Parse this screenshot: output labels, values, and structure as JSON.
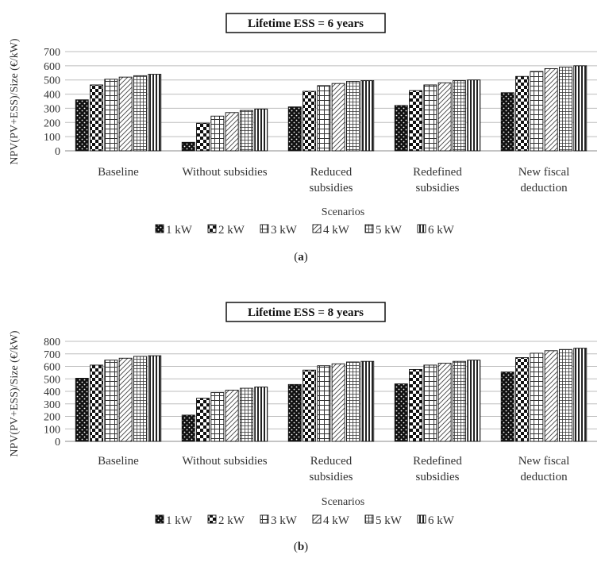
{
  "chart_data": [
    {
      "type": "bar",
      "title": "Lifetime ESS = 6 years",
      "panel_label": "a",
      "xlabel": "Scenarios",
      "ylabel": "NPV(PV+ESS)/Size (€/kW)",
      "ylim": [
        0,
        700
      ],
      "yticks": [
        0,
        100,
        200,
        300,
        400,
        500,
        600,
        700
      ],
      "grid": true,
      "legend_position": "bottom",
      "categories": [
        [
          "Baseline"
        ],
        [
          "Without subsidies"
        ],
        [
          "Reduced",
          "subsidies"
        ],
        [
          "Redefined",
          "subsidies"
        ],
        [
          "New fiscal",
          "deduction"
        ]
      ],
      "series": [
        {
          "name": "1 kW",
          "values": [
            360,
            60,
            310,
            320,
            410
          ]
        },
        {
          "name": "2 kW",
          "values": [
            465,
            195,
            420,
            425,
            525
          ]
        },
        {
          "name": "3 kW",
          "values": [
            505,
            245,
            460,
            465,
            560
          ]
        },
        {
          "name": "4 kW",
          "values": [
            520,
            270,
            475,
            480,
            580
          ]
        },
        {
          "name": "5 kW",
          "values": [
            530,
            285,
            490,
            495,
            590
          ]
        },
        {
          "name": "6 kW",
          "values": [
            540,
            295,
            495,
            500,
            600
          ]
        }
      ]
    },
    {
      "type": "bar",
      "title": "Lifetime ESS = 8 years",
      "panel_label": "b",
      "xlabel": "Scenarios",
      "ylabel": "NPV(PV+ESS)/Size (€/kW)",
      "ylim": [
        0,
        800
      ],
      "yticks": [
        0,
        100,
        200,
        300,
        400,
        500,
        600,
        700,
        800
      ],
      "grid": true,
      "legend_position": "bottom",
      "categories": [
        [
          "Baseline"
        ],
        [
          "Without subsidies"
        ],
        [
          "Reduced",
          "subsidies"
        ],
        [
          "Redefined",
          "subsidies"
        ],
        [
          "New fiscal",
          "deduction"
        ]
      ],
      "series": [
        {
          "name": "1 kW",
          "values": [
            505,
            210,
            455,
            460,
            555
          ]
        },
        {
          "name": "2 kW",
          "values": [
            610,
            345,
            570,
            575,
            670
          ]
        },
        {
          "name": "3 kW",
          "values": [
            650,
            390,
            605,
            610,
            705
          ]
        },
        {
          "name": "4 kW",
          "values": [
            665,
            410,
            620,
            625,
            725
          ]
        },
        {
          "name": "5 kW",
          "values": [
            680,
            425,
            635,
            640,
            735
          ]
        },
        {
          "name": "6 kW",
          "values": [
            685,
            435,
            640,
            650,
            745
          ]
        }
      ]
    }
  ],
  "patterns": [
    "black-dots",
    "checker",
    "grid",
    "diagonal",
    "small-grid",
    "vertical"
  ]
}
